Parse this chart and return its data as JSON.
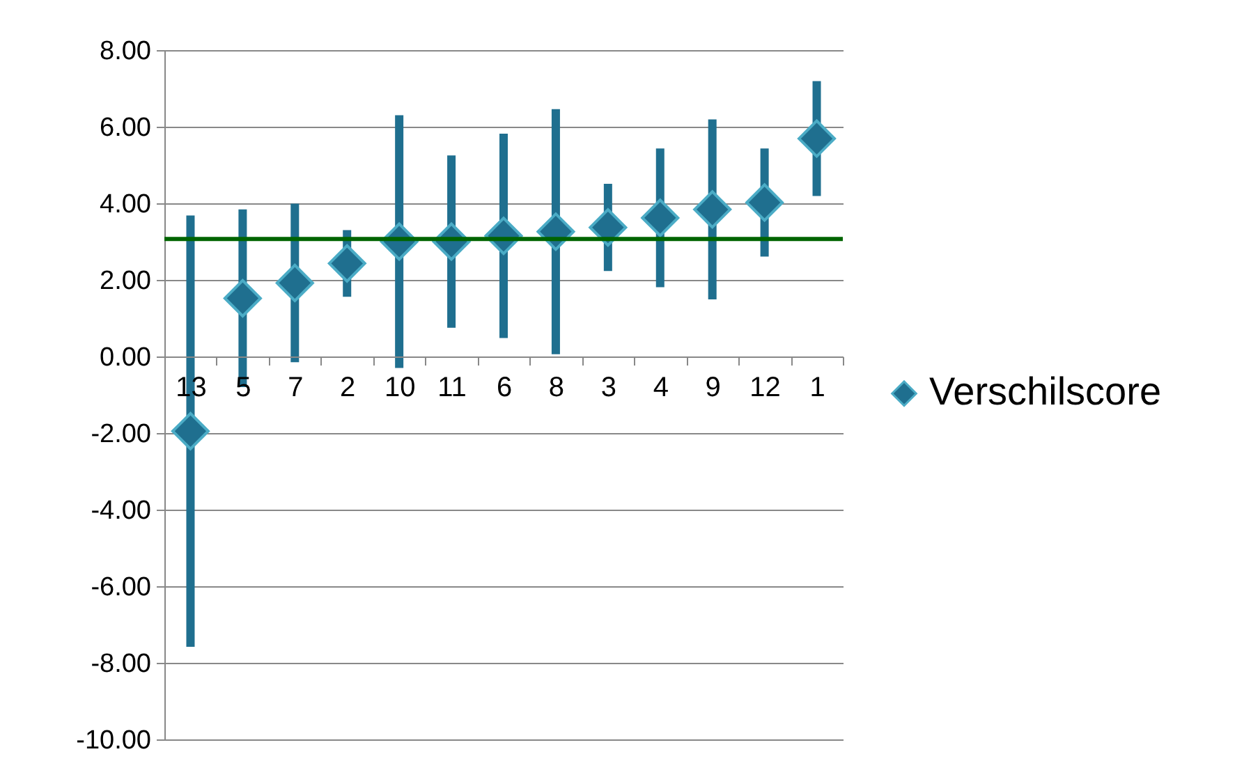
{
  "chart_data": {
    "type": "scatter",
    "categories": [
      "13",
      "5",
      "7",
      "2",
      "10",
      "11",
      "6",
      "8",
      "3",
      "4",
      "9",
      "12",
      "1"
    ],
    "series": [
      {
        "name": "Verschilscore",
        "color": "#1f6f8f",
        "values": [
          -1.95,
          1.52,
          1.92,
          2.43,
          3.0,
          3.0,
          3.15,
          3.26,
          3.37,
          3.62,
          3.84,
          4.02,
          5.69
        ],
        "errors": [
          5.63,
          2.32,
          2.07,
          0.87,
          3.3,
          2.25,
          2.67,
          3.2,
          1.14,
          1.81,
          2.35,
          1.41,
          1.5
        ]
      }
    ],
    "ylim": [
      -10,
      8
    ],
    "yticks": [
      {
        "value": -10,
        "label": "-10.00"
      },
      {
        "value": -8,
        "label": "-8.00"
      },
      {
        "value": -6,
        "label": "-6.00"
      },
      {
        "value": -4,
        "label": "-4.00"
      },
      {
        "value": -2,
        "label": "-2.00"
      },
      {
        "value": 0,
        "label": "0.00"
      },
      {
        "value": 2,
        "label": "2.00"
      },
      {
        "value": 4,
        "label": "4.00"
      },
      {
        "value": 6,
        "label": "6.00"
      },
      {
        "value": 8,
        "label": "8.00"
      }
    ],
    "ref_lines": [
      {
        "axis": "y",
        "value": 3.07,
        "color": "#006400"
      }
    ],
    "grid": "y",
    "legend": "right",
    "marker": "diamond"
  }
}
